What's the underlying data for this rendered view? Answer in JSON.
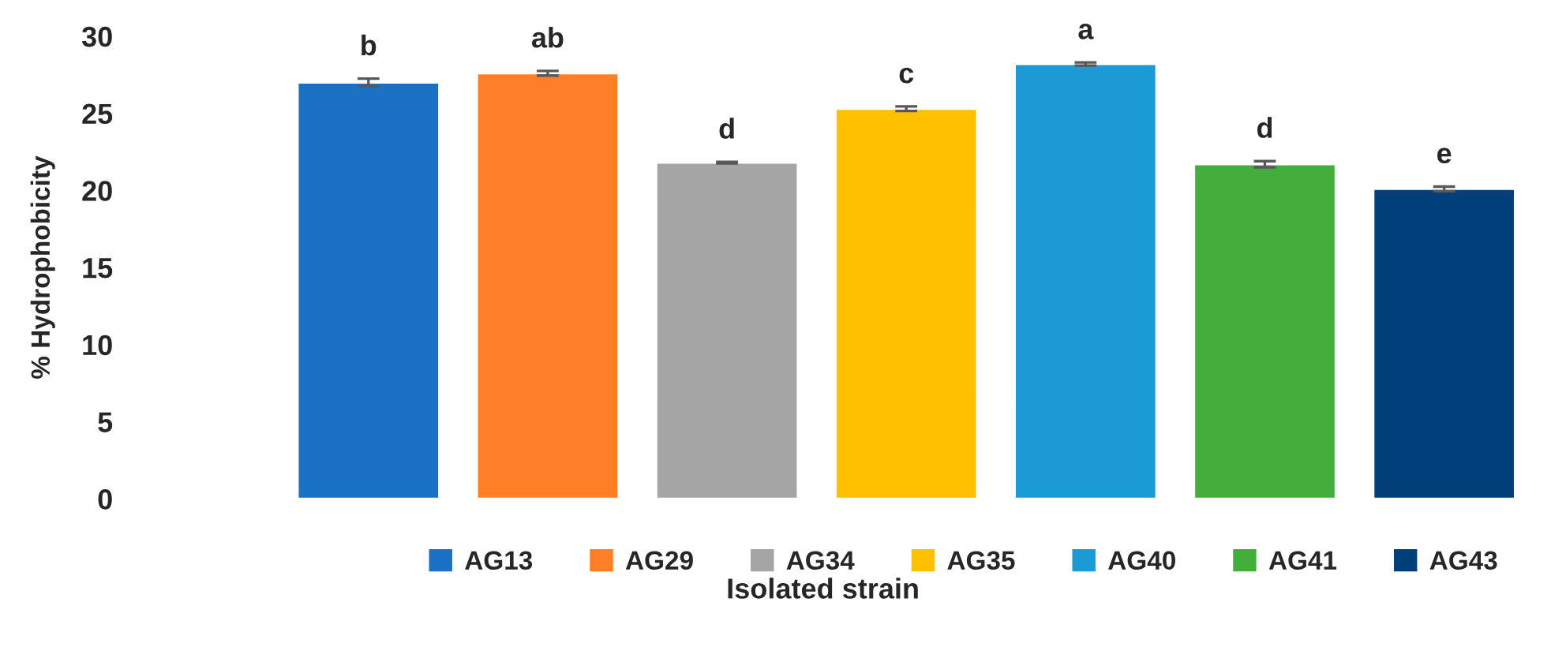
{
  "chart_data": {
    "type": "bar",
    "xlabel": "Isolated strain",
    "ylabel": "% Hydrophobicity",
    "categories": [
      null,
      null,
      null,
      null,
      null,
      null,
      null
    ],
    "annotations": [
      "AG13",
      "AG29",
      "AG34",
      "AG35",
      "AG40",
      "AG41",
      "AG43"
    ],
    "values": [
      27.0,
      27.6,
      21.8,
      25.3,
      28.2,
      21.7,
      20.1
    ],
    "colors": [
      "#1a71c6",
      "#fe7f27",
      "#a5a5a5",
      "#ffc000",
      "#1b9ad6",
      "#44ae3c",
      "#003f79"
    ],
    "errors": [
      0.25,
      0.15,
      0.05,
      0.15,
      0.1,
      0.2,
      0.15
    ],
    "value_labels": [
      "b",
      "ab",
      "d",
      "c",
      "a",
      "d",
      "e"
    ],
    "ylim": [
      0,
      30
    ],
    "yticks": [
      0,
      5,
      10,
      15,
      20,
      25,
      30
    ],
    "grid": false,
    "tick_labels": "y"
  }
}
